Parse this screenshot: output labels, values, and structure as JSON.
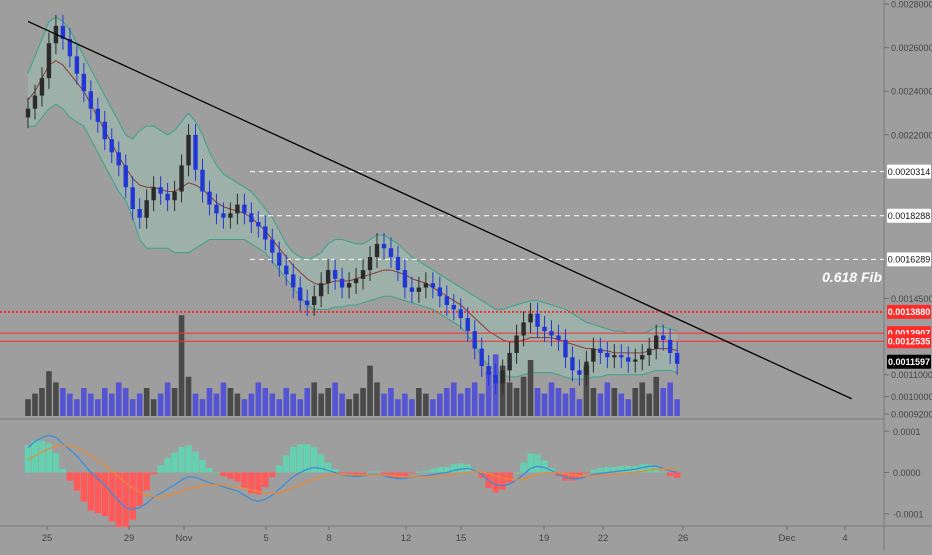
{
  "colors": {
    "background": "#9e9e9e",
    "candle_up": "#2b2b2b",
    "candle_down": "#2236d6",
    "bollinger_line": "#3aa38a",
    "bollinger_fill": "#9fc0b4",
    "bollinger_mid": "#8b3a3a",
    "trendline": "#000000",
    "dashed_level": "#ffffff",
    "fib_level": "#ff2a2a",
    "volume_up": "#4a4a4a",
    "volume_down": "#5555d4",
    "macd_line": "#3a8fd8",
    "signal_line": "#e8893a",
    "hist_pos": "#66d1b0",
    "hist_neg": "#ff5a5a",
    "price_tag_bg": "#ffffff",
    "current_price_bg": "#000000"
  },
  "chart_data": [
    {
      "type": "candlestick",
      "title": "",
      "x_ticks": [
        "25",
        "29",
        "Nov",
        "5",
        "8",
        "12",
        "15",
        "19",
        "22",
        "26",
        "Dec",
        "4"
      ],
      "y_ticks": [
        "0.0028000",
        "0.0026000",
        "0.0024000",
        "0.0022000",
        "0.0014500",
        "0.0011000",
        "0.0010000",
        "0.0009200"
      ],
      "ylim": [
        0.00092,
        0.0028
      ],
      "grid": false,
      "close_series": [
        0.00232,
        0.00238,
        0.00246,
        0.00262,
        0.0027,
        0.00264,
        0.00256,
        0.00248,
        0.0024,
        0.00232,
        0.00226,
        0.00218,
        0.00212,
        0.00206,
        0.00196,
        0.00186,
        0.00182,
        0.0019,
        0.00196,
        0.00193,
        0.0019,
        0.00194,
        0.00206,
        0.0022,
        0.00204,
        0.00194,
        0.00188,
        0.00184,
        0.00182,
        0.00184,
        0.00188,
        0.00184,
        0.0018,
        0.00178,
        0.00172,
        0.00166,
        0.0016,
        0.00156,
        0.0015,
        0.00144,
        0.00142,
        0.00146,
        0.00152,
        0.00158,
        0.00154,
        0.0015,
        0.00152,
        0.00154,
        0.00158,
        0.00164,
        0.0017,
        0.00168,
        0.00164,
        0.00158,
        0.0015,
        0.00148,
        0.0015,
        0.00152,
        0.0015,
        0.00146,
        0.00142,
        0.0014,
        0.00136,
        0.0013,
        0.00122,
        0.00114,
        0.0011,
        0.00106,
        0.00112,
        0.0012,
        0.00128,
        0.00134,
        0.00138,
        0.00132,
        0.0013,
        0.00128,
        0.00126,
        0.00118,
        0.00112,
        0.0011,
        0.00116,
        0.00122,
        0.0012,
        0.00118,
        0.00119,
        0.00118,
        0.00116,
        0.00117,
        0.00119,
        0.00122,
        0.00128,
        0.00126,
        0.0012,
        0.00115
      ],
      "bollinger_upper": [
        0.00248,
        0.00256,
        0.00264,
        0.00272,
        0.00274,
        0.00272,
        0.00268,
        0.00262,
        0.00256,
        0.0025,
        0.00244,
        0.00238,
        0.00232,
        0.00226,
        0.0022,
        0.00218,
        0.00222,
        0.00224,
        0.00224,
        0.00222,
        0.0022,
        0.00222,
        0.00226,
        0.0023,
        0.00226,
        0.0022,
        0.00212,
        0.00206,
        0.00202,
        0.002,
        0.00198,
        0.00196,
        0.00194,
        0.0019,
        0.00186,
        0.00182,
        0.00176,
        0.0017,
        0.00166,
        0.00164,
        0.00163,
        0.00164,
        0.00166,
        0.0017,
        0.00172,
        0.00172,
        0.00171,
        0.0017,
        0.0017,
        0.00172,
        0.00174,
        0.00174,
        0.00172,
        0.0017,
        0.00167,
        0.00164,
        0.00162,
        0.0016,
        0.00158,
        0.00156,
        0.00154,
        0.00152,
        0.0015,
        0.00148,
        0.00146,
        0.00144,
        0.00142,
        0.0014,
        0.0014,
        0.00141,
        0.00142,
        0.00143,
        0.00144,
        0.00144,
        0.00143,
        0.00142,
        0.00141,
        0.0014,
        0.00138,
        0.00136,
        0.00134,
        0.00133,
        0.00132,
        0.00131,
        0.0013,
        0.0013,
        0.00129,
        0.00129,
        0.00129,
        0.0013,
        0.00132,
        0.00132,
        0.00131,
        0.0013
      ],
      "bollinger_mid": [
        0.00236,
        0.0024,
        0.00246,
        0.00252,
        0.00254,
        0.00252,
        0.00248,
        0.00244,
        0.0024,
        0.00234,
        0.00228,
        0.00222,
        0.00216,
        0.0021,
        0.00205,
        0.002,
        0.00197,
        0.00196,
        0.00196,
        0.00195,
        0.00194,
        0.00194,
        0.00196,
        0.00198,
        0.00197,
        0.00195,
        0.00192,
        0.00189,
        0.00187,
        0.00186,
        0.00185,
        0.00184,
        0.00182,
        0.00179,
        0.00176,
        0.00172,
        0.00168,
        0.00164,
        0.0016,
        0.00157,
        0.00154,
        0.00152,
        0.00151,
        0.00152,
        0.00153,
        0.00153,
        0.00153,
        0.00154,
        0.00155,
        0.00156,
        0.00157,
        0.00158,
        0.00158,
        0.00157,
        0.00156,
        0.00154,
        0.00153,
        0.00152,
        0.0015,
        0.00148,
        0.00146,
        0.00144,
        0.00142,
        0.00139,
        0.00136,
        0.00133,
        0.0013,
        0.00128,
        0.00126,
        0.00125,
        0.00125,
        0.00126,
        0.00127,
        0.00127,
        0.00127,
        0.00127,
        0.00126,
        0.00125,
        0.00124,
        0.00123,
        0.00122,
        0.00122,
        0.00121,
        0.00121,
        0.0012,
        0.0012,
        0.0012,
        0.0012,
        0.0012,
        0.00121,
        0.00122,
        0.00122,
        0.00122,
        0.00121
      ],
      "bollinger_lower": [
        0.00224,
        0.00224,
        0.00228,
        0.00232,
        0.00234,
        0.00232,
        0.00228,
        0.00226,
        0.00224,
        0.00218,
        0.00212,
        0.00206,
        0.002,
        0.00194,
        0.0019,
        0.00182,
        0.00172,
        0.00168,
        0.00168,
        0.00168,
        0.00168,
        0.00166,
        0.00166,
        0.00166,
        0.00168,
        0.0017,
        0.00172,
        0.00172,
        0.00172,
        0.00172,
        0.00172,
        0.00172,
        0.0017,
        0.00168,
        0.00166,
        0.00162,
        0.00158,
        0.00154,
        0.0015,
        0.00146,
        0.00142,
        0.0014,
        0.0014,
        0.0014,
        0.00141,
        0.00141,
        0.00142,
        0.00142,
        0.00143,
        0.00144,
        0.00145,
        0.00146,
        0.00146,
        0.00145,
        0.00144,
        0.00143,
        0.00142,
        0.00141,
        0.0014,
        0.00138,
        0.00136,
        0.00134,
        0.00132,
        0.00128,
        0.00124,
        0.00118,
        0.00114,
        0.00112,
        0.0011,
        0.00109,
        0.00109,
        0.0011,
        0.00111,
        0.00111,
        0.00111,
        0.00111,
        0.0011,
        0.00109,
        0.00108,
        0.00108,
        0.00108,
        0.00109,
        0.00109,
        0.0011,
        0.0011,
        0.0011,
        0.0011,
        0.0011,
        0.0011,
        0.00111,
        0.00112,
        0.00112,
        0.00112,
        0.00111
      ],
      "volume_series": [
        3,
        4,
        5,
        8,
        6,
        5,
        4,
        3,
        5,
        4,
        3,
        5,
        4,
        6,
        5,
        3,
        4,
        5,
        3,
        4,
        6,
        5,
        18,
        7,
        4,
        3,
        5,
        4,
        6,
        5,
        4,
        3,
        4,
        6,
        5,
        4,
        3,
        5,
        4,
        3,
        5,
        6,
        4,
        5,
        6,
        4,
        3,
        4,
        5,
        9,
        6,
        4,
        5,
        3,
        4,
        3,
        5,
        4,
        3,
        4,
        5,
        6,
        4,
        5,
        6,
        4,
        8,
        11,
        9,
        6,
        5,
        7,
        10,
        5,
        4,
        6,
        5,
        4,
        5,
        3,
        9,
        5,
        4,
        6,
        5,
        4,
        3,
        5,
        6,
        4,
        7,
        5,
        6,
        3
      ],
      "horizontal_levels": [
        {
          "label": "0.0020314",
          "value": 0.0020314,
          "style": "dashed"
        },
        {
          "label": "0.0018288",
          "value": 0.0018288,
          "style": "dashed"
        },
        {
          "label": "0.0016289",
          "value": 0.0016289,
          "style": "dashed"
        },
        {
          "label": "0.0013880",
          "value": 0.001388,
          "style": "dotted-red"
        },
        {
          "label": "0.0012907",
          "value": 0.0012907,
          "style": "solid-red"
        },
        {
          "label": "0.0012535",
          "value": 0.0012535,
          "style": "solid-red"
        }
      ],
      "annotation": "0.618 Fib",
      "current_price": "0.0011597",
      "trendline": {
        "start": [
          0,
          0.00272
        ],
        "end": [
          118,
          0.00099
        ]
      }
    },
    {
      "type": "line",
      "title": "",
      "x_ticks": [
        "25",
        "29",
        "Nov",
        "5",
        "8",
        "12",
        "15",
        "19",
        "22",
        "26",
        "Dec",
        "4"
      ],
      "y_ticks": [
        "0.0001",
        "0.0000",
        "-0.0001"
      ],
      "ylim": [
        -0.00012,
        0.00012
      ],
      "series": [
        {
          "values": [
            6e-05,
            7.5e-05,
            8.5e-05,
            9e-05,
            8.5e-05,
            7e-05,
            5.5e-05,
            4e-05,
            2e-05,
            0.0,
            -1.5e-05,
            -3e-05,
            -5e-05,
            -7e-05,
            -8.5e-05,
            -9e-05,
            -8.5e-05,
            -7.5e-05,
            -6e-05,
            -5e-05,
            -4e-05,
            -3e-05,
            -1.8e-05,
            -1e-05,
            -1.2e-05,
            -1.8e-05,
            -2.5e-05,
            -3e-05,
            -3.5e-05,
            -4e-05,
            -4.5e-05,
            -5.5e-05,
            -6.5e-05,
            -7e-05,
            -6.5e-05,
            -5.5e-05,
            -4e-05,
            -2.5e-05,
            -1e-05,
            0.0,
            8e-06,
            1.2e-05,
            1e-05,
            5e-06,
            0.0,
            -5e-06,
            -8e-06,
            -1e-05,
            -8e-06,
            -5e-06,
            -5e-06,
            -8e-06,
            -1.2e-05,
            -1.5e-05,
            -1.4e-05,
            -1.2e-05,
            -1e-05,
            -8e-06,
            -5e-06,
            -2e-06,
            0.0,
            5e-06,
            8e-06,
            1e-05,
            5e-06,
            -5e-06,
            -2e-05,
            -3e-05,
            -3.2e-05,
            -2.8e-05,
            -1.8e-05,
            -5e-06,
            1e-05,
            1.5e-05,
            1.2e-05,
            5e-06,
            -5e-06,
            -1.2e-05,
            -1.5e-05,
            -1.5e-05,
            -1e-05,
            -5e-06,
            -2e-06,
            0.0,
            2e-06,
            4e-06,
            6e-06,
            8e-06,
            1.2e-05,
            1.5e-05,
            1.5e-05,
            1e-05,
            4e-06,
            0.0
          ]
        },
        {
          "values": [
            3e-05,
            4e-05,
            5e-05,
            5.8e-05,
            6.4e-05,
            6.6e-05,
            6.4e-05,
            6e-05,
            5.2e-05,
            4.2e-05,
            3e-05,
            1.8e-05,
            4e-06,
            -1e-05,
            -2.5e-05,
            -3.8e-05,
            -4.8e-05,
            -5.5e-05,
            -5.8e-05,
            -5.8e-05,
            -5.6e-05,
            -5.2e-05,
            -4.6e-05,
            -4e-05,
            -3.5e-05,
            -3.2e-05,
            -3e-05,
            -3e-05,
            -3.1e-05,
            -3.3e-05,
            -3.5e-05,
            -3.8e-05,
            -4.2e-05,
            -4.6e-05,
            -4.9e-05,
            -5e-05,
            -4.8e-05,
            -4.4e-05,
            -3.8e-05,
            -3.1e-05,
            -2.3e-05,
            -1.6e-05,
            -1e-05,
            -6e-06,
            -4e-06,
            -4e-06,
            -5e-06,
            -6e-06,
            -6e-06,
            -6e-06,
            -6e-06,
            -6e-06,
            -7e-06,
            -9e-06,
            -1e-05,
            -1.1e-05,
            -1.1e-05,
            -1e-05,
            -9e-06,
            -8e-06,
            -6e-06,
            -4e-06,
            -2e-06,
            1e-06,
            2e-06,
            1e-06,
            -3e-06,
            -8e-06,
            -1.3e-05,
            -1.7e-05,
            -1.8e-05,
            -1.6e-05,
            -1.1e-05,
            -5e-06,
            -1e-06,
            0.0,
            -1e-06,
            -3e-06,
            -6e-06,
            -8e-06,
            -9e-06,
            -8e-06,
            -7e-06,
            -6e-06,
            -4e-06,
            -3e-06,
            -1e-06,
            1e-06,
            3e-06,
            6e-06,
            8e-06,
            9e-06,
            8e-06,
            6e-06
          ]
        }
      ]
    }
  ]
}
